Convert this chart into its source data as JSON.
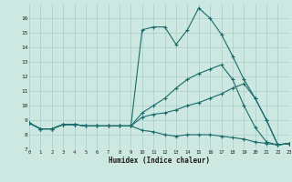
{
  "xlabel": "Humidex (Indice chaleur)",
  "background_color": "#cce8e0",
  "grid_color": "#a8cccc",
  "line_color": "#1a6b6b",
  "x_values": [
    0,
    1,
    2,
    3,
    4,
    5,
    6,
    7,
    8,
    9,
    10,
    11,
    12,
    13,
    14,
    15,
    16,
    17,
    18,
    19,
    20,
    21,
    22,
    23
  ],
  "series": [
    [
      8.8,
      8.4,
      8.4,
      8.7,
      8.7,
      8.6,
      8.6,
      8.6,
      8.6,
      8.6,
      15.2,
      15.4,
      15.4,
      14.2,
      15.2,
      16.7,
      16.0,
      14.9,
      13.4,
      11.8,
      10.5,
      9.0,
      7.3,
      7.4
    ],
    [
      8.8,
      8.4,
      8.4,
      8.7,
      8.7,
      8.6,
      8.6,
      8.6,
      8.6,
      8.6,
      9.5,
      10.0,
      10.5,
      11.2,
      11.8,
      12.2,
      12.5,
      12.8,
      11.8,
      10.0,
      8.5,
      7.5,
      7.3,
      7.4
    ],
    [
      8.8,
      8.4,
      8.4,
      8.7,
      8.7,
      8.6,
      8.6,
      8.6,
      8.6,
      8.6,
      9.2,
      9.4,
      9.5,
      9.7,
      10.0,
      10.2,
      10.5,
      10.8,
      11.2,
      11.5,
      10.5,
      9.0,
      7.3,
      7.4
    ],
    [
      8.8,
      8.4,
      8.4,
      8.7,
      8.7,
      8.6,
      8.6,
      8.6,
      8.6,
      8.6,
      8.3,
      8.2,
      8.0,
      7.9,
      8.0,
      8.0,
      8.0,
      7.9,
      7.8,
      7.7,
      7.5,
      7.4,
      7.3,
      7.4
    ]
  ],
  "ylim": [
    7,
    17
  ],
  "xlim": [
    0,
    23
  ],
  "yticks": [
    7,
    8,
    9,
    10,
    11,
    12,
    13,
    14,
    15,
    16
  ],
  "xticks": [
    0,
    1,
    2,
    3,
    4,
    5,
    6,
    7,
    8,
    9,
    10,
    11,
    12,
    13,
    14,
    15,
    16,
    17,
    18,
    19,
    20,
    21,
    22,
    23
  ]
}
